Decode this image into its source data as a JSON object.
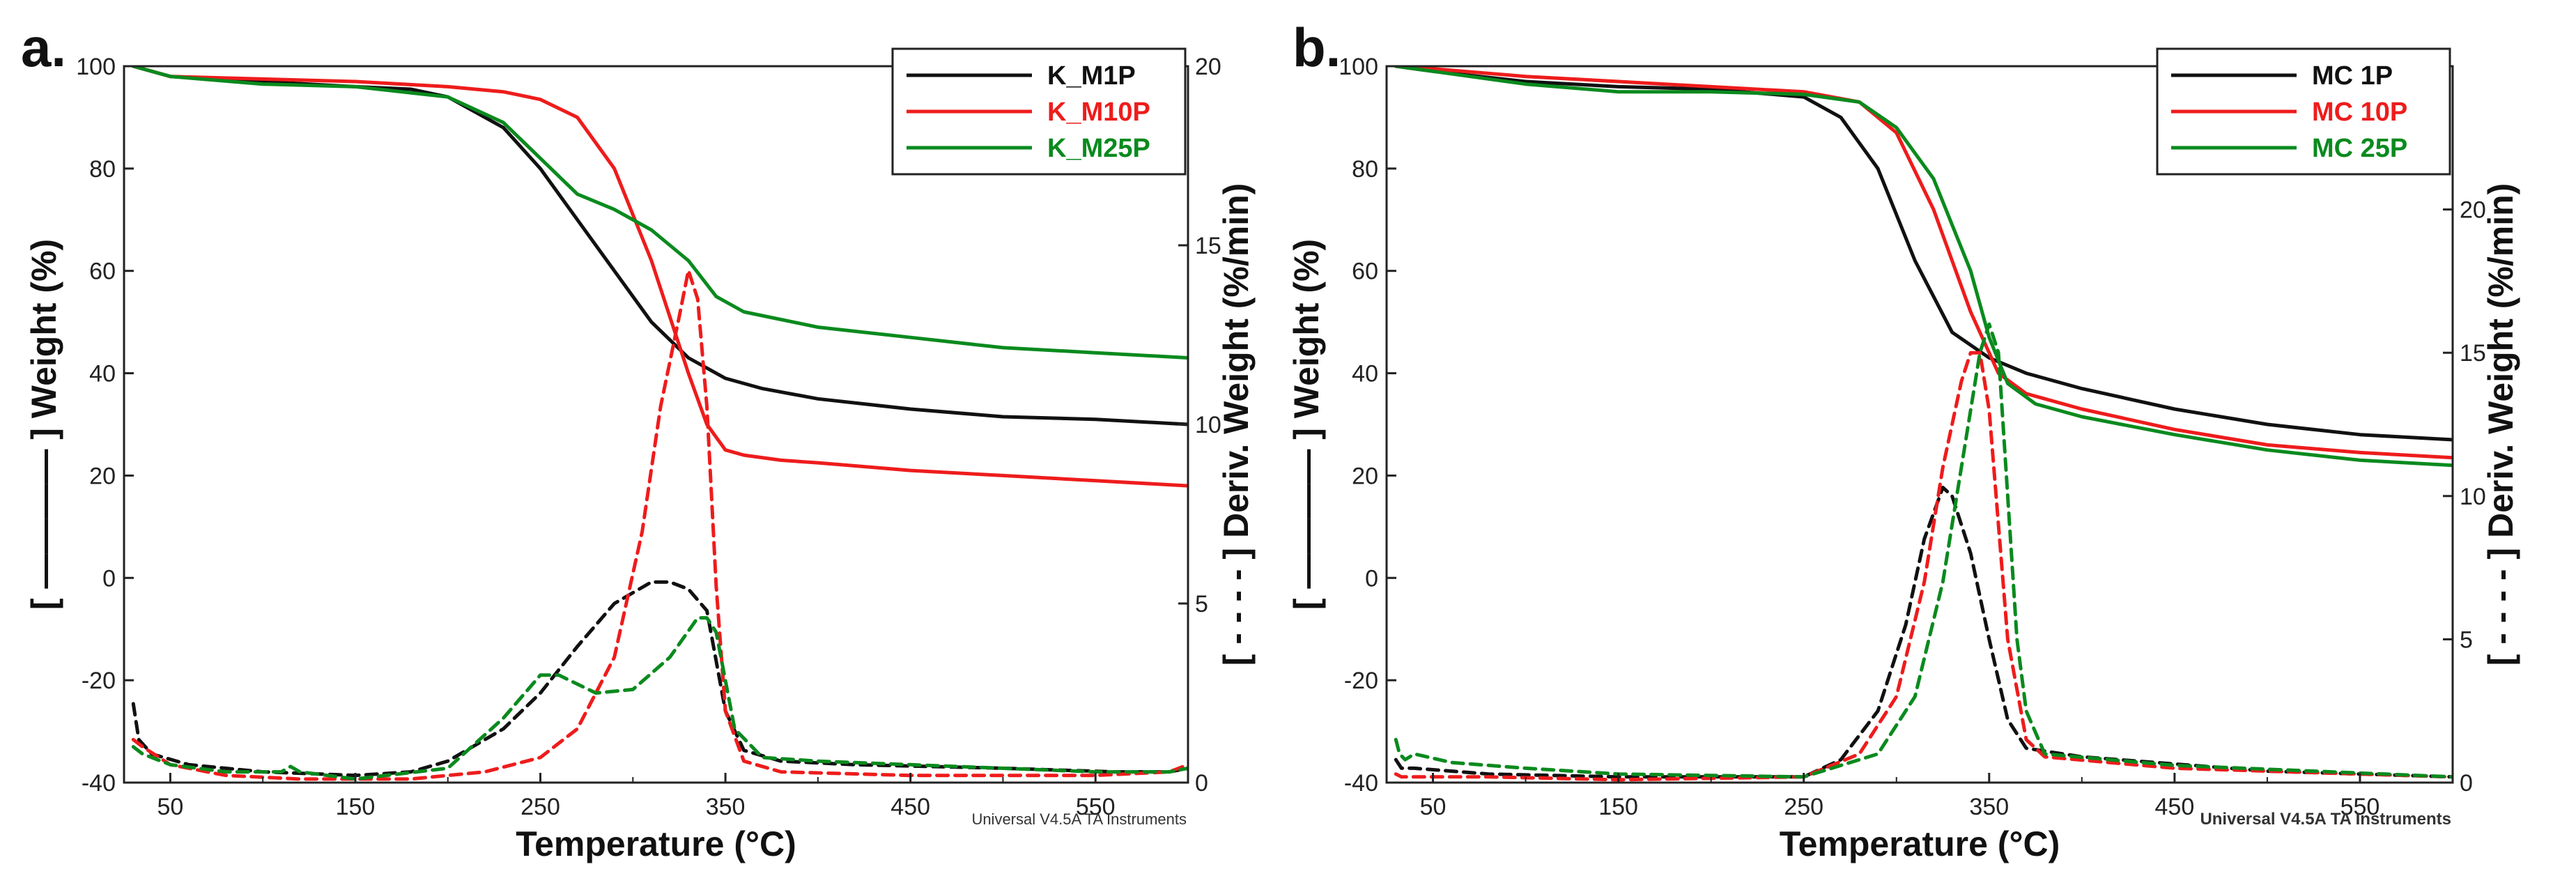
{
  "colors": {
    "black": "#111111",
    "red": "#ee1c1c",
    "green": "#0a8a1e",
    "axis": "#222222"
  },
  "panels": [
    {
      "label": "a.",
      "credit": "Universal V4.5A TA Instruments",
      "chart_data": {
        "type": "line",
        "xlabel": "Temperature (°C)",
        "ylabel_left": "[ ———— ] Weight (%)",
        "ylabel_right": "[ - - - - ] Deriv. Weight (%/min)",
        "xlim": [
          25,
          600
        ],
        "ylim_left": [
          -40,
          100
        ],
        "ylim_right": [
          0,
          20
        ],
        "xticks": [
          50,
          150,
          250,
          350,
          450,
          550
        ],
        "yticks_left": [
          -40,
          -20,
          0,
          20,
          40,
          60,
          80,
          100
        ],
        "yticks_right": [
          0,
          5,
          10,
          15,
          20
        ],
        "legend_position": "top-right",
        "series": [
          {
            "name": "K_M1P",
            "color": "#111111",
            "axis": "left",
            "style": "solid",
            "x": [
              30,
              50,
              100,
              150,
              180,
              200,
              230,
              250,
              270,
              290,
              310,
              330,
              350,
              370,
              400,
              450,
              500,
              550,
              600
            ],
            "y": [
              100,
              98,
              97,
              96,
              95.5,
              94,
              88,
              80,
              70,
              60,
              50,
              43,
              39,
              37,
              35,
              33,
              31.5,
              31,
              30
            ]
          },
          {
            "name": "K_M10P",
            "color": "#ee1c1c",
            "axis": "left",
            "style": "solid",
            "x": [
              30,
              50,
              100,
              150,
              200,
              230,
              250,
              270,
              290,
              310,
              330,
              340,
              350,
              360,
              380,
              400,
              450,
              500,
              550,
              600
            ],
            "y": [
              100,
              98,
              97.5,
              97,
              96,
              95,
              93.5,
              90,
              80,
              62,
              40,
              30,
              25,
              24,
              23,
              22.5,
              21,
              20,
              19,
              18
            ]
          },
          {
            "name": "K_M25P",
            "color": "#0a8a1e",
            "axis": "left",
            "style": "solid",
            "x": [
              30,
              50,
              100,
              150,
              200,
              230,
              250,
              270,
              290,
              310,
              330,
              345,
              360,
              380,
              400,
              450,
              500,
              550,
              600
            ],
            "y": [
              100,
              98,
              96.5,
              96,
              94,
              89,
              82,
              75,
              72,
              68,
              62,
              55,
              52,
              50.5,
              49,
              47,
              45,
              44,
              43
            ]
          },
          {
            "name": "K_M1P deriv",
            "color": "#111111",
            "axis": "right",
            "style": "dashed",
            "x": [
              30,
              33,
              40,
              60,
              100,
              150,
              180,
              200,
              230,
              250,
              270,
              290,
              310,
              320,
              330,
              340,
              350,
              360,
              380,
              420,
              500,
              560,
              590,
              600
            ],
            "y": [
              2.2,
              1.2,
              0.8,
              0.5,
              0.3,
              0.2,
              0.3,
              0.6,
              1.5,
              2.5,
              3.8,
              5.0,
              5.6,
              5.6,
              5.4,
              4.8,
              2.0,
              0.9,
              0.6,
              0.5,
              0.4,
              0.3,
              0.3,
              0.4
            ]
          },
          {
            "name": "K_M10P deriv",
            "color": "#ee1c1c",
            "axis": "right",
            "style": "dashed",
            "x": [
              30,
              35,
              50,
              80,
              120,
              180,
              220,
              250,
              270,
              290,
              305,
              315,
              325,
              330,
              335,
              340,
              345,
              350,
              360,
              380,
              450,
              550,
              590,
              600
            ],
            "y": [
              1.2,
              1.0,
              0.5,
              0.2,
              0.1,
              0.1,
              0.3,
              0.7,
              1.5,
              3.5,
              7.0,
              10.5,
              13.0,
              14.3,
              13.5,
              10.5,
              5.5,
              2.0,
              0.6,
              0.3,
              0.2,
              0.2,
              0.3,
              0.5
            ]
          },
          {
            "name": "K_M25P deriv",
            "color": "#0a8a1e",
            "axis": "right",
            "style": "dashed",
            "x": [
              30,
              35,
              50,
              80,
              110,
              115,
              120,
              150,
              200,
              230,
              250,
              260,
              280,
              300,
              320,
              335,
              340,
              345,
              355,
              370,
              400,
              450,
              550,
              590,
              600
            ],
            "y": [
              1.0,
              0.8,
              0.5,
              0.3,
              0.3,
              0.45,
              0.3,
              0.1,
              0.4,
              1.8,
              3.0,
              3.0,
              2.5,
              2.6,
              3.5,
              4.6,
              4.6,
              4.2,
              1.5,
              0.7,
              0.6,
              0.5,
              0.3,
              0.3,
              0.4
            ]
          }
        ]
      }
    },
    {
      "label": "b.",
      "credit": "Universal V4.5A TA Instruments",
      "chart_data": {
        "type": "line",
        "xlabel": "Temperature (°C)",
        "ylabel_left": "[ ———— ] Weight (%)",
        "ylabel_right": "[ - - - - ] Deriv. Weight (%/min)",
        "xlim": [
          25,
          600
        ],
        "ylim_left": [
          -40,
          100
        ],
        "ylim_right": [
          0,
          25
        ],
        "xticks": [
          50,
          150,
          250,
          350,
          450,
          550
        ],
        "yticks_left": [
          -40,
          -20,
          0,
          20,
          40,
          60,
          80,
          100
        ],
        "yticks_right": [
          0,
          5,
          10,
          15,
          20
        ],
        "legend_position": "top-right",
        "series": [
          {
            "name": "MC 1P",
            "color": "#111111",
            "axis": "left",
            "style": "solid",
            "x": [
              30,
              50,
              100,
              150,
              200,
              250,
              270,
              290,
              310,
              330,
              350,
              370,
              400,
              450,
              500,
              550,
              600
            ],
            "y": [
              100,
              99,
              97,
              96,
              95.5,
              94,
              90,
              80,
              62,
              48,
              43,
              40,
              37,
              33,
              30,
              28,
              27
            ]
          },
          {
            "name": "MC 10P",
            "color": "#ee1c1c",
            "axis": "left",
            "style": "solid",
            "x": [
              30,
              50,
              100,
              150,
              200,
              250,
              280,
              300,
              320,
              340,
              355,
              370,
              400,
              450,
              500,
              550,
              600
            ],
            "y": [
              100,
              99.5,
              98,
              97,
              96,
              95,
              93,
              87,
              72,
              52,
              40,
              36,
              33,
              29,
              26,
              24.5,
              23.5
            ]
          },
          {
            "name": "MC 25P",
            "color": "#0a8a1e",
            "axis": "left",
            "style": "solid",
            "x": [
              30,
              50,
              100,
              150,
              200,
              250,
              280,
              300,
              320,
              340,
              350,
              360,
              375,
              400,
              450,
              500,
              550,
              600
            ],
            "y": [
              100,
              99,
              96.5,
              95,
              95,
              94.5,
              93,
              88,
              78,
              60,
              47,
              38,
              34,
              31.5,
              28,
              25,
              23,
              22
            ]
          },
          {
            "name": "MC 1P deriv",
            "color": "#111111",
            "axis": "right",
            "style": "dashed",
            "x": [
              30,
              33,
              40,
              80,
              150,
              250,
              270,
              290,
              305,
              315,
              325,
              330,
              340,
              350,
              360,
              370,
              400,
              500,
              600
            ],
            "y": [
              0.8,
              0.5,
              0.5,
              0.3,
              0.2,
              0.2,
              0.8,
              2.5,
              5.5,
              8.5,
              10.3,
              10.0,
              8.0,
              5.0,
              2.2,
              1.2,
              0.9,
              0.4,
              0.2
            ]
          },
          {
            "name": "MC 10P deriv",
            "color": "#ee1c1c",
            "axis": "right",
            "style": "dashed",
            "x": [
              30,
              33,
              40,
              80,
              150,
              250,
              280,
              300,
              315,
              325,
              335,
              340,
              345,
              350,
              355,
              360,
              370,
              380,
              450,
              600
            ],
            "y": [
              0.3,
              0.2,
              0.2,
              0.2,
              0.1,
              0.2,
              1.0,
              3.0,
              7.0,
              11.0,
              14.0,
              15.0,
              15.0,
              13.0,
              9.0,
              5.0,
              1.5,
              0.9,
              0.5,
              0.2
            ]
          },
          {
            "name": "MC 25P deriv",
            "color": "#0a8a1e",
            "axis": "right",
            "style": "dashed",
            "x": [
              30,
              32,
              35,
              40,
              60,
              100,
              150,
              250,
              290,
              310,
              325,
              335,
              345,
              350,
              355,
              360,
              365,
              370,
              380,
              450,
              600
            ],
            "y": [
              1.5,
              1.0,
              0.8,
              1.0,
              0.7,
              0.5,
              0.3,
              0.2,
              1.0,
              3.0,
              7.0,
              11.0,
              15.0,
              16.0,
              15.0,
              10.0,
              5.0,
              2.5,
              1.0,
              0.6,
              0.2
            ]
          }
        ]
      }
    }
  ]
}
